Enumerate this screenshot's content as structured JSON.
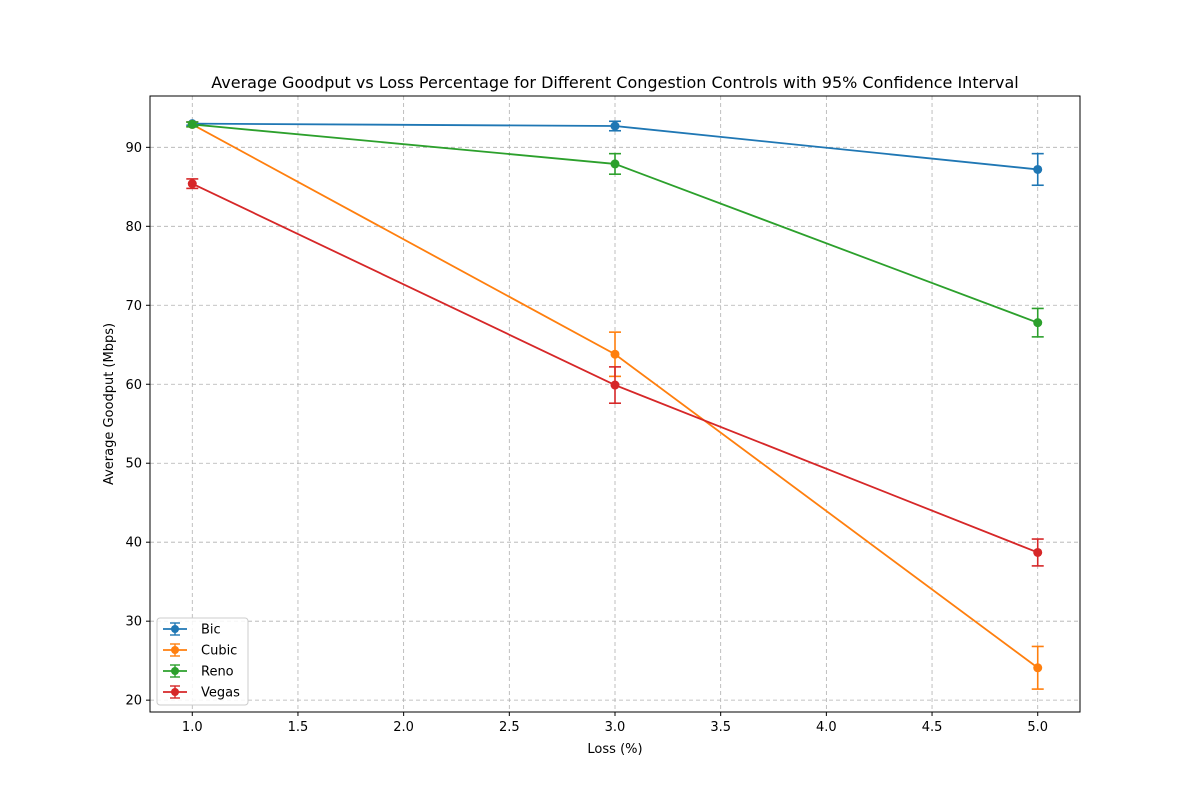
{
  "chart_data": {
    "type": "line",
    "title": "Average Goodput vs Loss Percentage for Different Congestion Controls with 95% Confidence Interval",
    "xlabel": "Loss (%)",
    "ylabel": "Average Goodput (Mbps)",
    "xlim": [
      0.8,
      5.2
    ],
    "ylim": [
      18.5,
      96.5
    ],
    "xticks": [
      "1.0",
      "1.5",
      "2.0",
      "2.5",
      "3.0",
      "3.5",
      "4.0",
      "4.5",
      "5.0"
    ],
    "yticks": [
      "20",
      "30",
      "40",
      "50",
      "60",
      "70",
      "80",
      "90"
    ],
    "grid": true,
    "legend_position": "lower-left",
    "x": [
      1.0,
      3.0,
      5.0
    ],
    "series": [
      {
        "name": "Bic",
        "color": "#1f77b4",
        "values": [
          93.0,
          92.7,
          87.2
        ],
        "err": [
          0.2,
          0.6,
          2.0
        ]
      },
      {
        "name": "Cubic",
        "color": "#ff7f0e",
        "values": [
          92.9,
          63.8,
          24.1
        ],
        "err": [
          0.3,
          2.8,
          2.7
        ]
      },
      {
        "name": "Reno",
        "color": "#2ca02c",
        "values": [
          92.9,
          87.9,
          67.8
        ],
        "err": [
          0.3,
          1.3,
          1.8
        ]
      },
      {
        "name": "Vegas",
        "color": "#d62728",
        "values": [
          85.4,
          59.9,
          38.7
        ],
        "err": [
          0.6,
          2.3,
          1.7
        ]
      }
    ]
  }
}
